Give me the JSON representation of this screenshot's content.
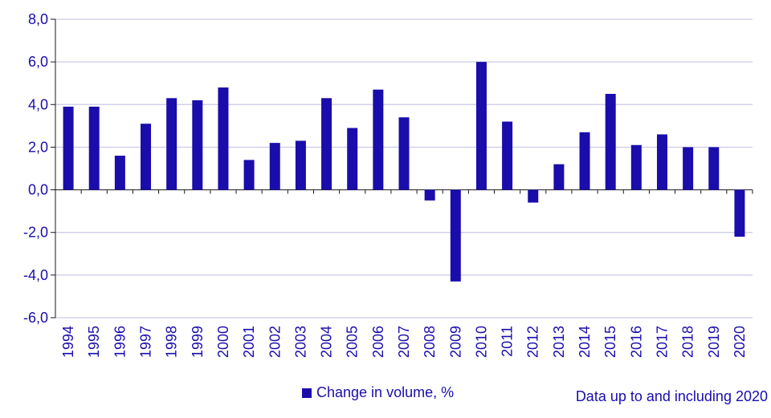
{
  "chart_data": {
    "type": "bar",
    "categories": [
      "1994",
      "1995",
      "1996",
      "1997",
      "1998",
      "1999",
      "2000",
      "2001",
      "2002",
      "2003",
      "2004",
      "2005",
      "2006",
      "2007",
      "2008",
      "2009",
      "2010",
      "2011",
      "2012",
      "2013",
      "2014",
      "2015",
      "2016",
      "2017",
      "2018",
      "2019",
      "2020"
    ],
    "series": [
      {
        "name": "Change in volume, %",
        "values": [
          3.9,
          3.9,
          1.6,
          3.1,
          4.3,
          4.2,
          4.8,
          1.4,
          2.2,
          2.3,
          4.3,
          2.9,
          4.7,
          3.4,
          -0.5,
          -4.3,
          6.0,
          3.2,
          -0.6,
          1.2,
          2.7,
          4.5,
          2.1,
          2.6,
          2.0,
          2.0,
          -2.2
        ]
      }
    ],
    "ylim": [
      -6,
      8
    ],
    "yticks": [
      "-6,0",
      "-4,0",
      "-2,0",
      "0,0",
      "2,0",
      "4,0",
      "6,0",
      "8,0"
    ],
    "grid": true,
    "legend_position": "bottom",
    "note": "Data up to and including 2020",
    "colors": {
      "bar": "#1a0dab",
      "text": "#1a0dab",
      "grid": "#c9c9e8",
      "axis": "#1a1a1a"
    }
  }
}
